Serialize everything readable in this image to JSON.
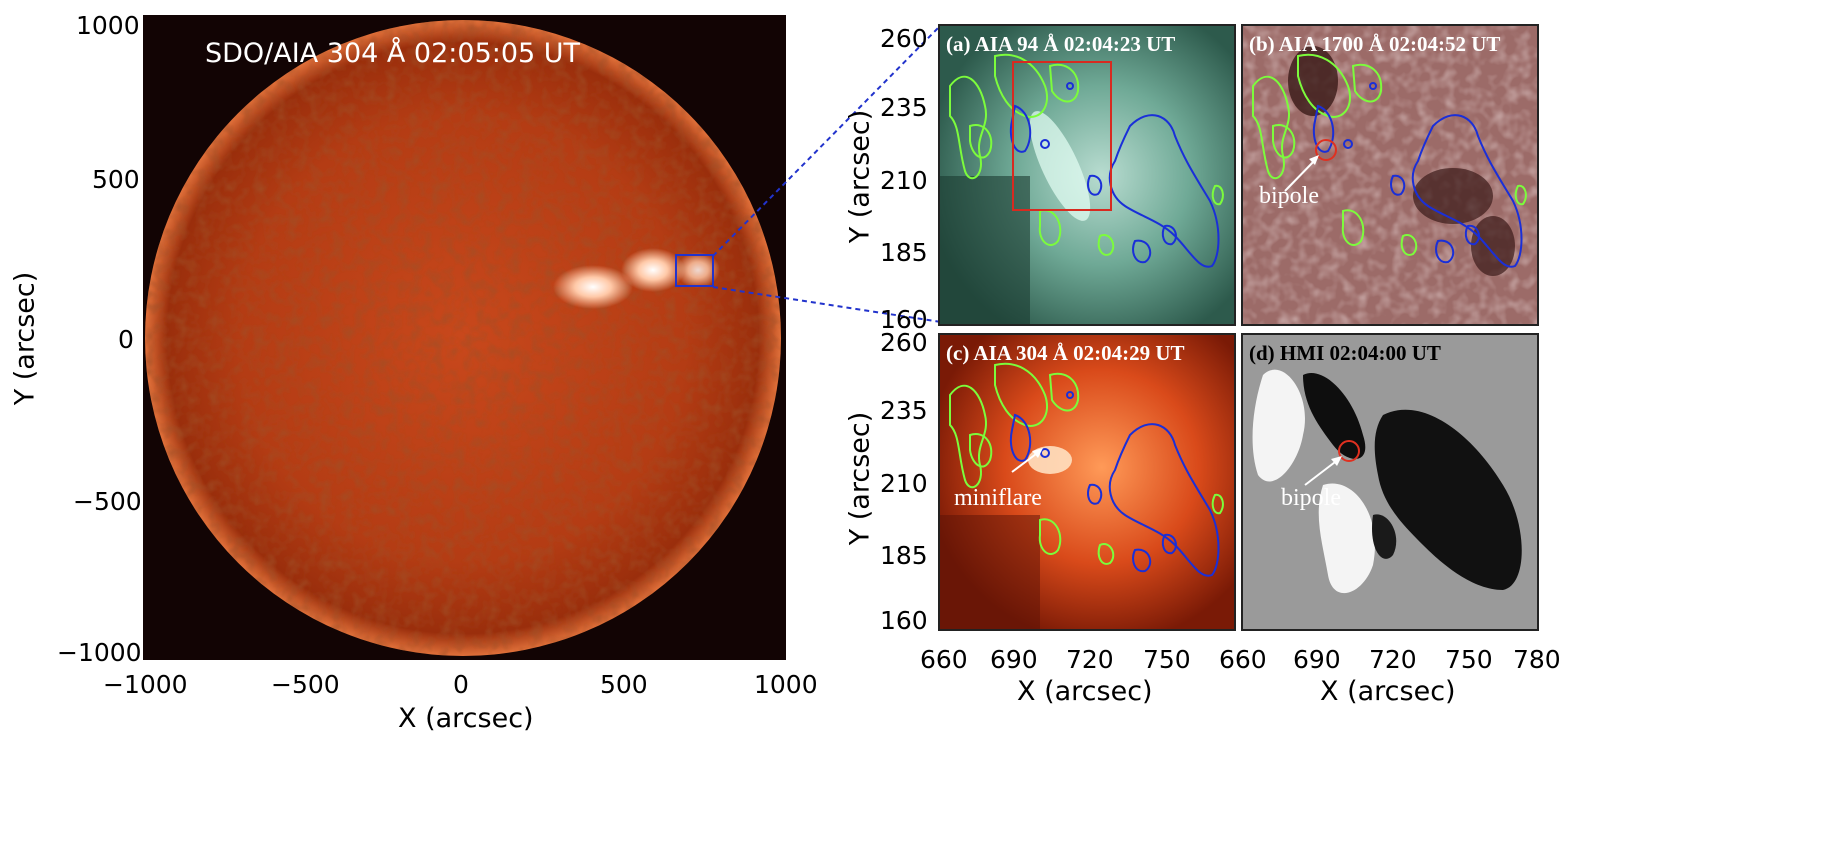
{
  "left": {
    "title": "SDO/AIA 304 Å 02:05:05 UT",
    "xlabel": "X (arcsec)",
    "ylabel": "Y (arcsec)",
    "xticks": [
      "−1000",
      "−500",
      "0",
      "500",
      "1000"
    ],
    "yticks": [
      "1000",
      "500",
      "0",
      "−500",
      "−1000"
    ]
  },
  "right": {
    "ylabel": "Y (arcsec)",
    "xlabel": "X (arcsec)",
    "yticks": [
      "260",
      "235",
      "210",
      "185",
      "160"
    ],
    "xticks_left": [
      "660",
      "690",
      "720",
      "750"
    ],
    "xticks_right": [
      "660",
      "690",
      "720",
      "750",
      "780"
    ],
    "panels": {
      "a": {
        "title": "(a) AIA 94 Å 02:04:23 UT"
      },
      "b": {
        "title": "(b) AIA 1700 Å 02:04:52 UT",
        "annotation": "bipole"
      },
      "c": {
        "title": "(c) AIA 304 Å 02:04:29 UT",
        "annotation": "miniflare"
      },
      "d": {
        "title": "(d) HMI 02:04:00 UT",
        "annotation": "bipole"
      }
    }
  },
  "colors": {
    "positive_contour": "#7CFC3C",
    "negative_contour": "#1a2fd8",
    "highlight": "#e03020",
    "box": "#2233cc"
  }
}
